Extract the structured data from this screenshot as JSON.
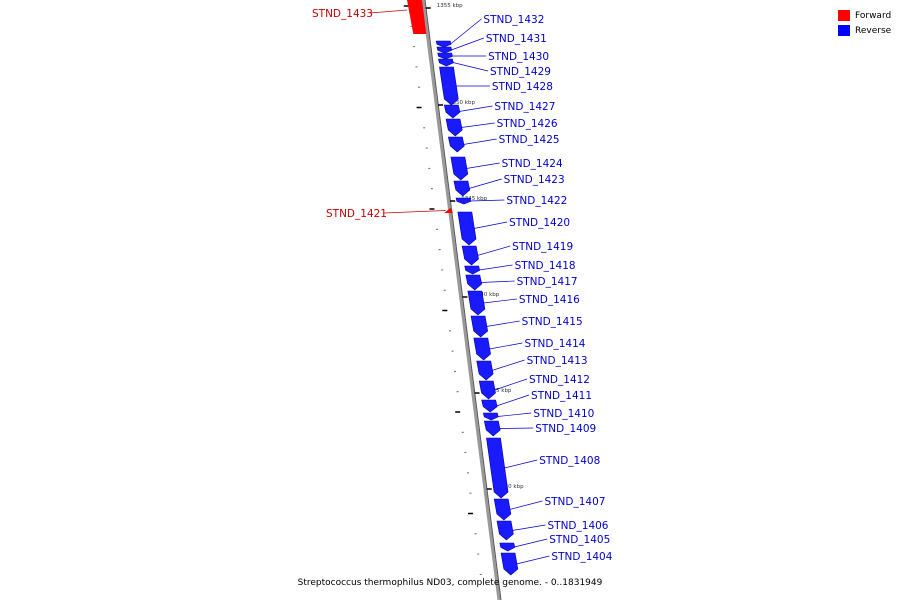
{
  "caption": "Streptococcus thermophilus ND03, complete genome. - 0..1831949",
  "legend": [
    {
      "label": "Forward",
      "color": "#ff0000"
    },
    {
      "label": "Reverse",
      "color": "#0000ff"
    }
  ],
  "colors": {
    "forward": "#ff0000",
    "reverse": "#1a1aff",
    "label_reverse": "#0000cc",
    "label_forward": "#cc0000",
    "backbone": "#999999"
  },
  "scale_ticks": [
    {
      "label": "1355 kbp",
      "kbp": 1355
    },
    {
      "label": "1350 kbp",
      "kbp": 1350
    },
    {
      "label": "1345 kbp",
      "kbp": 1345
    },
    {
      "label": "1340 kbp",
      "kbp": 1340
    },
    {
      "label": "1335 kbp",
      "kbp": 1335
    },
    {
      "label": "1330 kbp",
      "kbp": 1330
    }
  ],
  "genes": [
    {
      "name": "STND_1433",
      "strand": "forward"
    },
    {
      "name": "STND_1432",
      "strand": "reverse"
    },
    {
      "name": "STND_1431",
      "strand": "reverse"
    },
    {
      "name": "STND_1430",
      "strand": "reverse"
    },
    {
      "name": "STND_1429",
      "strand": "reverse"
    },
    {
      "name": "STND_1428",
      "strand": "reverse"
    },
    {
      "name": "STND_1427",
      "strand": "reverse"
    },
    {
      "name": "STND_1426",
      "strand": "reverse"
    },
    {
      "name": "STND_1425",
      "strand": "reverse"
    },
    {
      "name": "STND_1424",
      "strand": "reverse"
    },
    {
      "name": "STND_1423",
      "strand": "reverse"
    },
    {
      "name": "STND_1422",
      "strand": "reverse"
    },
    {
      "name": "STND_1421",
      "strand": "forward"
    },
    {
      "name": "STND_1420",
      "strand": "reverse"
    },
    {
      "name": "STND_1419",
      "strand": "reverse"
    },
    {
      "name": "STND_1418",
      "strand": "reverse"
    },
    {
      "name": "STND_1417",
      "strand": "reverse"
    },
    {
      "name": "STND_1416",
      "strand": "reverse"
    },
    {
      "name": "STND_1415",
      "strand": "reverse"
    },
    {
      "name": "STND_1414",
      "strand": "reverse"
    },
    {
      "name": "STND_1413",
      "strand": "reverse"
    },
    {
      "name": "STND_1412",
      "strand": "reverse"
    },
    {
      "name": "STND_1411",
      "strand": "reverse"
    },
    {
      "name": "STND_1410",
      "strand": "reverse"
    },
    {
      "name": "STND_1409",
      "strand": "reverse"
    },
    {
      "name": "STND_1408",
      "strand": "reverse"
    },
    {
      "name": "STND_1407",
      "strand": "reverse"
    },
    {
      "name": "STND_1406",
      "strand": "reverse"
    },
    {
      "name": "STND_1405",
      "strand": "reverse"
    },
    {
      "name": "STND_1404",
      "strand": "reverse"
    }
  ]
}
